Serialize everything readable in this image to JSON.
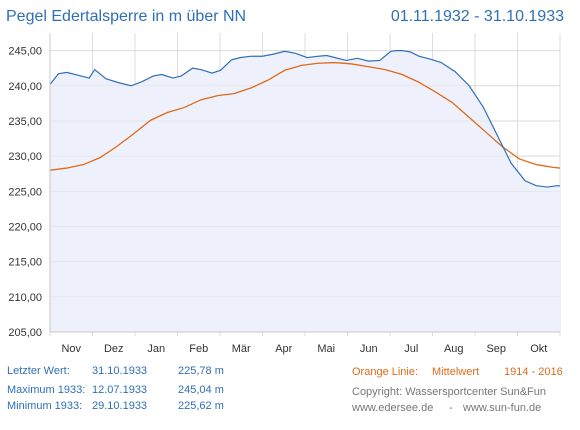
{
  "header": {
    "title": "Pegel Edertalsperre in m über NN",
    "period": "01.11.1932 - 31.10.1933"
  },
  "colors": {
    "accent": "#2f6fb6",
    "mean_line": "#e06a1a",
    "area_fill": "#eef1fb",
    "grid": "#dcdcdc"
  },
  "chart_data": {
    "type": "line",
    "x_tick_labels": [
      "Nov",
      "Dez",
      "Jan",
      "Feb",
      "Mär",
      "Apr",
      "Mai",
      "Jun",
      "Jul",
      "Aug",
      "Sep",
      "Okt"
    ],
    "y_tick_labels": [
      "205,00",
      "210,00",
      "215,00",
      "220,00",
      "225,00",
      "230,00",
      "235,00",
      "240,00",
      "245,00"
    ],
    "ylim": [
      205,
      247.5
    ],
    "xlim": [
      0,
      365
    ],
    "grid": true,
    "series": [
      {
        "key": "level_1933",
        "x": [
          0,
          6,
          12,
          20,
          28,
          32,
          40,
          48,
          58,
          66,
          74,
          80,
          88,
          94,
          102,
          108,
          116,
          122,
          130,
          136,
          144,
          152,
          160,
          168,
          176,
          184,
          192,
          198,
          204,
          212,
          220,
          228,
          236,
          244,
          248,
          252,
          258,
          264,
          272,
          280,
          290,
          300,
          310,
          320,
          330,
          340,
          348,
          356,
          363,
          365
        ],
        "y": [
          240.2,
          241.7,
          241.9,
          241.5,
          241.1,
          242.3,
          241.0,
          240.5,
          240.0,
          240.6,
          241.4,
          241.6,
          241.1,
          241.4,
          242.5,
          242.3,
          241.8,
          242.2,
          243.7,
          244.0,
          244.2,
          244.2,
          244.5,
          244.9,
          244.6,
          244.0,
          244.2,
          244.3,
          244.0,
          243.6,
          243.9,
          243.5,
          243.6,
          244.9,
          245.0,
          245.0,
          244.8,
          244.2,
          243.8,
          243.3,
          242.0,
          240.0,
          237.0,
          233.0,
          229.0,
          226.5,
          225.8,
          225.6,
          225.8,
          225.78
        ]
      },
      {
        "key": "mean",
        "x": [
          0,
          12,
          24,
          36,
          48,
          60,
          72,
          84,
          96,
          108,
          120,
          132,
          144,
          156,
          168,
          180,
          192,
          204,
          216,
          228,
          240,
          252,
          264,
          276,
          288,
          300,
          312,
          324,
          336,
          348,
          360,
          365
        ],
        "y": [
          228.0,
          228.3,
          228.8,
          229.8,
          231.4,
          233.2,
          235.1,
          236.2,
          236.9,
          238.0,
          238.6,
          238.9,
          239.7,
          240.8,
          242.2,
          242.9,
          243.2,
          243.3,
          243.1,
          242.7,
          242.3,
          241.6,
          240.5,
          239.1,
          237.6,
          235.5,
          233.4,
          231.3,
          229.6,
          228.8,
          228.4,
          228.3
        ]
      }
    ]
  },
  "info": {
    "last_label": "Letzter Wert:",
    "last_date": "31.10.1933",
    "last_value": "225,78 m",
    "max_label": "Maximum 1933:",
    "max_date": "12.07.1933",
    "max_value": "245,04 m",
    "min_label": "Minimum  1933:",
    "min_date": "29.10.1933",
    "min_value": "225,62 m",
    "legend_prefix": "Orange Linie:",
    "legend_label": "Mittelwert",
    "legend_years": "1914 - 2016",
    "copyright": "Copyright: Wassersportcenter Sun&Fun",
    "site1": "www.edersee.de",
    "sep": "-",
    "site2": "www.sun-fun.de"
  }
}
